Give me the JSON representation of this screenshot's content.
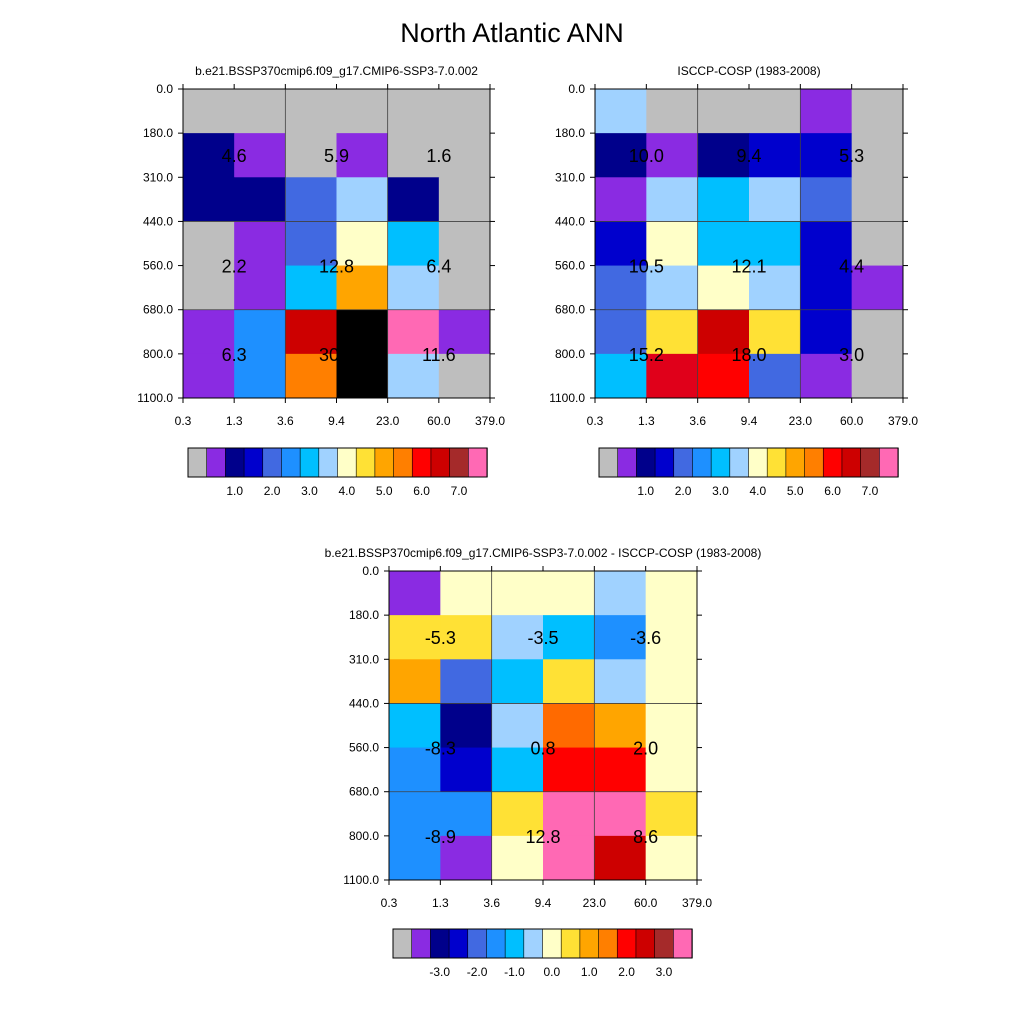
{
  "title": "North Atlantic ANN",
  "chart_data": [
    {
      "type": "heatmap",
      "title": "b.e21.BSSP370cmip6.f09_g17.CMIP6-SSP3-7.0.002",
      "x_ticks": [
        "0.3",
        "1.3",
        "3.6",
        "9.4",
        "23.0",
        "60.0",
        "379.0"
      ],
      "y_ticks": [
        "0.0",
        "180.0",
        "310.0",
        "440.0",
        "560.0",
        "680.0",
        "800.0",
        "1100.0"
      ],
      "cell_colors": [
        [
          0,
          0,
          0,
          0,
          0,
          0
        ],
        [
          2,
          1,
          0,
          1,
          0,
          0
        ],
        [
          2,
          2,
          4,
          7,
          2,
          0
        ],
        [
          0,
          1,
          4,
          8,
          6,
          0
        ],
        [
          0,
          1,
          6,
          10,
          7,
          0
        ],
        [
          1,
          5,
          15,
          18,
          17,
          1
        ],
        [
          1,
          5,
          11,
          18,
          7,
          0
        ]
      ],
      "block_labels": [
        [
          "4.6",
          "5.9",
          "1.6"
        ],
        [
          "2.2",
          "12.8",
          "6.4"
        ],
        [
          "6.3",
          "30.8",
          "11.6"
        ]
      ],
      "colorbar_labels": [
        "1.0",
        "2.0",
        "3.0",
        "4.0",
        "5.0",
        "6.0",
        "7.0"
      ]
    },
    {
      "type": "heatmap",
      "title": "ISCCP-COSP (1983-2008)",
      "x_ticks": [
        "0.3",
        "1.3",
        "3.6",
        "9.4",
        "23.0",
        "60.0",
        "379.0"
      ],
      "y_ticks": [
        "0.0",
        "180.0",
        "310.0",
        "440.0",
        "560.0",
        "680.0",
        "800.0",
        "1100.0"
      ],
      "cell_colors": [
        [
          7,
          0,
          0,
          0,
          1,
          0
        ],
        [
          2,
          1,
          2,
          3,
          3,
          0
        ],
        [
          1,
          7,
          6,
          7,
          4,
          0
        ],
        [
          3,
          8,
          6,
          6,
          3,
          0
        ],
        [
          4,
          7,
          8,
          7,
          3,
          1
        ],
        [
          4,
          9,
          15,
          9,
          3,
          0
        ],
        [
          6,
          14,
          13,
          4,
          1,
          0
        ]
      ],
      "block_labels": [
        [
          "10.0",
          "9.4",
          "5.3"
        ],
        [
          "10.5",
          "12.1",
          "4.4"
        ],
        [
          "15.2",
          "18.0",
          "3.0"
        ]
      ],
      "colorbar_labels": [
        "1.0",
        "2.0",
        "3.0",
        "4.0",
        "5.0",
        "6.0",
        "7.0"
      ]
    },
    {
      "type": "heatmap",
      "title": "b.e21.BSSP370cmip6.f09_g17.CMIP6-SSP3-7.0.002 - ISCCP-COSP (1983-2008)",
      "x_ticks": [
        "0.3",
        "1.3",
        "3.6",
        "9.4",
        "23.0",
        "60.0",
        "379.0"
      ],
      "y_ticks": [
        "0.0",
        "180.0",
        "310.0",
        "440.0",
        "560.0",
        "680.0",
        "800.0",
        "1100.0"
      ],
      "cell_colors": [
        [
          1,
          8,
          8,
          8,
          7,
          8
        ],
        [
          9,
          9,
          7,
          6,
          5,
          8
        ],
        [
          10,
          4,
          6,
          9,
          7,
          8
        ],
        [
          6,
          2,
          7,
          12,
          10,
          8
        ],
        [
          5,
          3,
          6,
          13,
          13,
          8
        ],
        [
          5,
          5,
          9,
          17,
          17,
          9
        ],
        [
          5,
          1,
          8,
          17,
          15,
          8
        ]
      ],
      "block_labels": [
        [
          "-5.3",
          "-3.5",
          "-3.6"
        ],
        [
          "-8.3",
          "0.8",
          "2.0"
        ],
        [
          "-8.9",
          "12.8",
          "8.6"
        ]
      ],
      "colorbar_labels": [
        "-3.0",
        "-2.0",
        "-1.0",
        "0.0",
        "1.0",
        "2.0",
        "3.0"
      ]
    }
  ],
  "palette": [
    "#bebebe",
    "#8a2be2",
    "#00008b",
    "#0000cd",
    "#4169e1",
    "#1e90ff",
    "#00bfff",
    "#a0d2ff",
    "#ffffc8",
    "#ffe135",
    "#ffa500",
    "#ff7f00",
    "#ff6a00",
    "#ff0000",
    "#e0001a",
    "#cd0000",
    "#a52a2a",
    "#ff69b4",
    "#ff69b4"
  ]
}
